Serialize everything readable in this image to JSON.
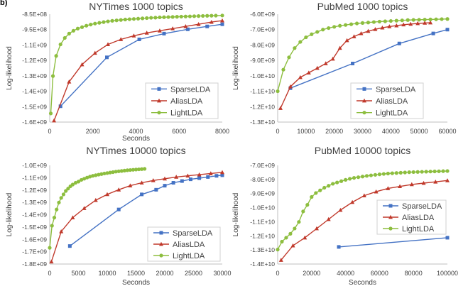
{
  "figure_label": "b)",
  "colors": {
    "SparseLDA": "#4472C4",
    "AliasLDA": "#C0392B",
    "LightLDA": "#8DBE3F"
  },
  "chart_data": [
    {
      "type": "line",
      "title": "NYTimes 1000 topics",
      "xlabel": "Seconds",
      "ylabel": "Log-likelihood",
      "xlim": [
        0,
        8000
      ],
      "ylim": [
        -1600000000.0,
        -850000000.0
      ],
      "xticks": [
        "0",
        "2000",
        "4000",
        "6000",
        "8000"
      ],
      "yticks": [
        "-8.5E+08",
        "-9.5E+08",
        "-1.1E+09",
        "-1.2E+09",
        "-1.3E+09",
        "-1.4E+09",
        "-1.5E+09",
        "-1.6E+09"
      ],
      "legend_position": "bottom-right",
      "series": [
        {
          "name": "SparseLDA",
          "marker": "square",
          "x": [
            500,
            2650,
            4150,
            5300,
            6400,
            7300,
            8000
          ],
          "y": [
            -1490000000.0,
            -1150000000.0,
            -1025000000.0,
            -985000000.0,
            -955000000.0,
            -935000000.0,
            -920000000.0
          ]
        },
        {
          "name": "AliasLDA",
          "marker": "triangle",
          "x": [
            200,
            900,
            1500,
            2100,
            2700,
            3300,
            3900,
            4500,
            5100,
            5700,
            6300,
            6900,
            7500,
            8000
          ],
          "y": [
            -1590000000.0,
            -1320000000.0,
            -1200000000.0,
            -1120000000.0,
            -1060000000.0,
            -1025000000.0,
            -1000000000.0,
            -980000000.0,
            -965000000.0,
            -950000000.0,
            -935000000.0,
            -920000000.0,
            -905000000.0,
            -895000000.0
          ]
        },
        {
          "name": "LightLDA",
          "marker": "circle",
          "x": [
            50,
            150,
            300,
            500,
            700,
            900,
            1100,
            1300,
            1500,
            1700,
            1900,
            2100,
            2300,
            2500,
            2700,
            2900,
            3100,
            3300,
            3500,
            3700,
            3900,
            4100,
            4300,
            4500,
            4700,
            4900,
            5100,
            5300,
            5500,
            5700,
            5900,
            6100,
            6300,
            6500,
            6700,
            6900,
            7100,
            7300,
            7500,
            7700,
            8000
          ],
          "y": [
            -1540000000.0,
            -1280000000.0,
            -1140000000.0,
            -1060000000.0,
            -1015000000.0,
            -985000000.0,
            -965000000.0,
            -950000000.0,
            -940000000.0,
            -930000000.0,
            -922000000.0,
            -915000000.0,
            -910000000.0,
            -905000000.0,
            -900000000.0,
            -896000000.0,
            -893000000.0,
            -890000000.0,
            -887000000.0,
            -885000000.0,
            -883000000.0,
            -881000000.0,
            -879000000.0,
            -877000000.0,
            -875000000.0,
            -874000000.0,
            -872000000.0,
            -871000000.0,
            -870000000.0,
            -869000000.0,
            -868000000.0,
            -867000000.0,
            -866000000.0,
            -865000000.0,
            -864000000.0,
            -863000000.0,
            -862000000.0,
            -861000000.0,
            -860500000.0,
            -860000000.0,
            -859000000.0
          ]
        }
      ]
    },
    {
      "type": "line",
      "title": "PubMed 1000 topics",
      "xlabel": "",
      "ylabel": "Log-likelihood",
      "xlim": [
        0,
        60000
      ],
      "ylim": [
        -13000000000.0,
        -6000000000.0
      ],
      "xticks": [
        "0",
        "10000",
        "20000",
        "30000",
        "40000",
        "50000",
        "60000"
      ],
      "yticks": [
        "-6.0E+09",
        "-7.0E+09",
        "-8.0E+09",
        "-9.0E+09",
        "-1.0E+10",
        "-1.1E+10",
        "-1.2E+10",
        "-1.3E+10"
      ],
      "legend_position": "bottom-right",
      "series": [
        {
          "name": "SparseLDA",
          "marker": "square",
          "x": [
            4500,
            26500,
            43000,
            55000,
            60000
          ],
          "y": [
            -10800000000.0,
            -9200000000.0,
            -7900000000.0,
            -7250000000.0,
            -7000000000.0
          ]
        },
        {
          "name": "AliasLDA",
          "marker": "triangle",
          "x": [
            1000,
            4500,
            8000,
            11000,
            14000,
            17000,
            19500,
            22000,
            24500,
            27000,
            29500,
            32000,
            34500,
            37000,
            39500,
            42000,
            44500,
            47000,
            49500,
            52000,
            54000
          ],
          "y": [
            -12100000000.0,
            -10700000000.0,
            -10100000000.0,
            -9800000000.0,
            -9500000000.0,
            -9200000000.0,
            -8900000000.0,
            -8200000000.0,
            -7700000000.0,
            -7450000000.0,
            -7250000000.0,
            -7100000000.0,
            -6980000000.0,
            -6880000000.0,
            -6800000000.0,
            -6740000000.0,
            -6680000000.0,
            -6640000000.0,
            -6600000000.0,
            -6570000000.0,
            -6550000000.0
          ]
        },
        {
          "name": "LightLDA",
          "marker": "circle",
          "x": [
            0,
            2000,
            4000,
            6000,
            8000,
            10000,
            12000,
            14000,
            16000,
            18000,
            20000,
            22000,
            24000,
            26000,
            28000,
            30000,
            32000,
            34000,
            36000,
            38000,
            40000,
            42000,
            44000,
            46000,
            48000,
            50000,
            52000,
            54000,
            56000,
            58000,
            60000
          ],
          "y": [
            -11000000000.0,
            -9600000000.0,
            -8800000000.0,
            -8200000000.0,
            -7800000000.0,
            -7500000000.0,
            -7300000000.0,
            -7150000000.0,
            -7000000000.0,
            -6900000000.0,
            -6820000000.0,
            -6750000000.0,
            -6700000000.0,
            -6650000000.0,
            -6600000000.0,
            -6570000000.0,
            -6540000000.0,
            -6510000000.0,
            -6480000000.0,
            -6460000000.0,
            -6440000000.0,
            -6420000000.0,
            -6400000000.0,
            -6380000000.0,
            -6370000000.0,
            -6360000000.0,
            -6350000000.0,
            -6340000000.0,
            -6330000000.0,
            -6320000000.0,
            -6310000000.0
          ]
        }
      ]
    },
    {
      "type": "line",
      "title": "NYTimes 10000 topics",
      "xlabel": "Seconds",
      "ylabel": "Log-likelihood",
      "xlim": [
        0,
        30000
      ],
      "ylim": [
        -1800000000.0,
        -950000000.0
      ],
      "xticks": [
        "0",
        "5000",
        "10000",
        "15000",
        "20000",
        "25000",
        "30000"
      ],
      "yticks": [
        "-1.0E+09",
        "-1.1E+09",
        "-1.2E+09",
        "-1.3E+09",
        "-1.4E+09",
        "-1.5E+09",
        "-1.6E+09",
        "-1.7E+09",
        "-1.8E+09"
      ],
      "legend_position": "bottom-right",
      "series": [
        {
          "name": "SparseLDA",
          "marker": "square",
          "x": [
            3500,
            12000,
            16000,
            18500,
            20000,
            21500,
            23000,
            24500,
            26000,
            27500,
            29000,
            30000
          ],
          "y": [
            -1645000000.0,
            -1330000000.0,
            -1200000000.0,
            -1160000000.0,
            -1125000000.0,
            -1100000000.0,
            -1085000000.0,
            -1070000000.0,
            -1060000000.0,
            -1050000000.0,
            -1040000000.0,
            -1035000000.0
          ]
        },
        {
          "name": "AliasLDA",
          "marker": "triangle",
          "x": [
            300,
            2000,
            4000,
            6000,
            8000,
            10000,
            12000,
            14000,
            16000,
            18000,
            20000,
            22000,
            24000,
            26000,
            28000,
            30000
          ],
          "y": [
            -1780000000.0,
            -1520000000.0,
            -1400000000.0,
            -1320000000.0,
            -1250000000.0,
            -1200000000.0,
            -1160000000.0,
            -1125000000.0,
            -1100000000.0,
            -1080000000.0,
            -1065000000.0,
            -1050000000.0,
            -1040000000.0,
            -1030000000.0,
            -1020000000.0,
            -1010000000.0
          ]
        },
        {
          "name": "LightLDA",
          "marker": "circle",
          "x": [
            0,
            400,
            800,
            1200,
            1600,
            2000,
            2400,
            2800,
            3200,
            3600,
            4000,
            4500,
            5000,
            5500,
            6000,
            6500,
            7000,
            7500,
            8000,
            8500,
            9000,
            9500,
            10000,
            10500,
            11000,
            11500,
            12000,
            12500,
            13000,
            13500,
            14000,
            14500,
            15000,
            15500,
            16000,
            16500
          ],
          "y": [
            -1660000000.0,
            -1470000000.0,
            -1400000000.0,
            -1330000000.0,
            -1270000000.0,
            -1230000000.0,
            -1200000000.0,
            -1170000000.0,
            -1150000000.0,
            -1130000000.0,
            -1115000000.0,
            -1100000000.0,
            -1090000000.0,
            -1075000000.0,
            -1065000000.0,
            -1055000000.0,
            -1047000000.0,
            -1040000000.0,
            -1035000000.0,
            -1030000000.0,
            -1025000000.0,
            -1020000000.0,
            -1016000000.0,
            -1012000000.0,
            -1008000000.0,
            -1004000000.0,
            -1001000000.0,
            -998000000.0,
            -995000000.0,
            -992000000.0,
            -990000000.0,
            -988000000.0,
            -986000000.0,
            -984000000.0,
            -982000000.0,
            -980000000.0
          ]
        }
      ]
    },
    {
      "type": "line",
      "title": "PubMed 10000 topics",
      "xlabel": "Seconds",
      "ylabel": "Log-likelihood",
      "xlim": [
        0,
        100000
      ],
      "ylim": [
        -14000000000.0,
        -6500000000.0
      ],
      "xticks": [
        "0",
        "20000",
        "40000",
        "60000",
        "80000",
        "100000"
      ],
      "yticks": [
        "-7.0E+09",
        "-8.0E+09",
        "-9.0E+09",
        "-1.0E+10",
        "-1.1E+10",
        "-1.2E+10",
        "-1.3E+10",
        "-1.4E+10"
      ],
      "legend_position": "center-right",
      "series": [
        {
          "name": "SparseLDA",
          "marker": "square",
          "x": [
            36000,
            100000
          ],
          "y": [
            -12700000000.0,
            -12000000000.0
          ]
        },
        {
          "name": "AliasLDA",
          "marker": "triangle",
          "x": [
            2000,
            9000,
            16000,
            23000,
            30000,
            37000,
            44000,
            51000,
            58000,
            65000,
            72000,
            79000,
            86000,
            93000,
            100000
          ],
          "y": [
            -13700000000.0,
            -12600000000.0,
            -12000000000.0,
            -11300000000.0,
            -10600000000.0,
            -9900000000.0,
            -9300000000.0,
            -8800000000.0,
            -8500000000.0,
            -8250000000.0,
            -8100000000.0,
            -7950000000.0,
            -7850000000.0,
            -7750000000.0,
            -7650000000.0
          ]
        },
        {
          "name": "LightLDA",
          "marker": "circle",
          "x": [
            0,
            2500,
            5000,
            7500,
            10000,
            12500,
            15000,
            17500,
            20000,
            22500,
            25000,
            27500,
            30000,
            32500,
            35000,
            37500,
            40000,
            42500,
            45000,
            47500,
            50000,
            52500,
            55000,
            57500,
            60000,
            62500,
            65000,
            67500,
            70000,
            72500,
            75000,
            77500,
            80000,
            82500,
            85000,
            87500,
            90000,
            92500,
            95000,
            97500,
            100000
          ],
          "y": [
            -12900000000.0,
            -12300000000.0,
            -12000000000.0,
            -11700000000.0,
            -11300000000.0,
            -10800000000.0,
            -10000000000.0,
            -9500000000.0,
            -8900000000.0,
            -8600000000.0,
            -8400000000.0,
            -8200000000.0,
            -8050000000.0,
            -7900000000.0,
            -7800000000.0,
            -7700000000.0,
            -7600000000.0,
            -7520000000.0,
            -7450000000.0,
            -7400000000.0,
            -7350000000.0,
            -7300000000.0,
            -7260000000.0,
            -7220000000.0,
            -7180000000.0,
            -7150000000.0,
            -7120000000.0,
            -7100000000.0,
            -7080000000.0,
            -7060000000.0,
            -7040000000.0,
            -7020000000.0,
            -7010000000.0,
            -7000000000.0,
            -6990000000.0,
            -6980000000.0,
            -6970000000.0,
            -6960000000.0,
            -6950000000.0,
            -6940000000.0,
            -6930000000.0
          ]
        }
      ]
    }
  ]
}
